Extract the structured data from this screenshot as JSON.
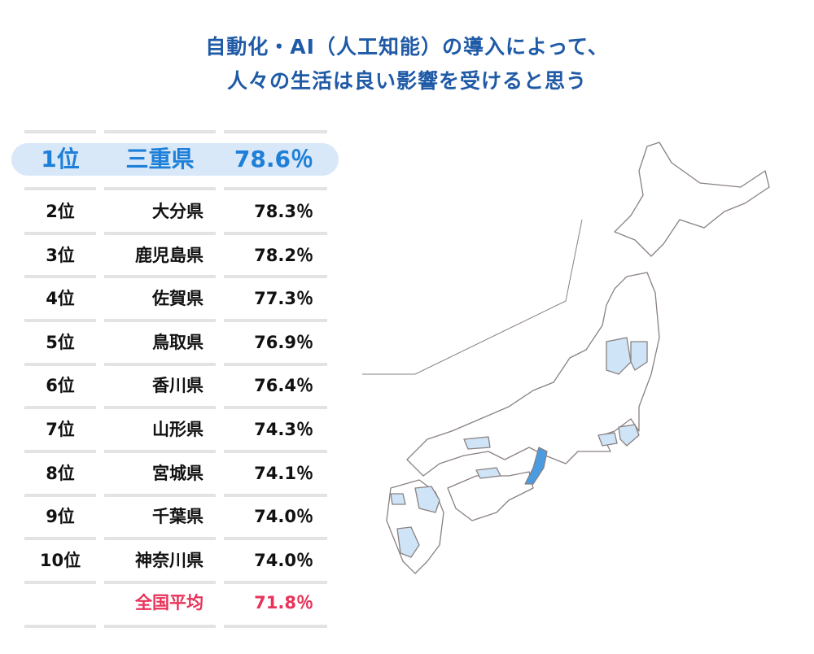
{
  "title": {
    "line1": "自動化・AI（人工知能）の導入によって、",
    "line2": "人々の生活は良い影響を受けると思う"
  },
  "ranking": [
    {
      "rank": "1位",
      "prefecture": "三重県",
      "percent": "78.6％"
    },
    {
      "rank": "2位",
      "prefecture": "大分県",
      "percent": "78.3％"
    },
    {
      "rank": "3位",
      "prefecture": "鹿児島県",
      "percent": "78.2％"
    },
    {
      "rank": "4位",
      "prefecture": "佐賀県",
      "percent": "77.3％"
    },
    {
      "rank": "5位",
      "prefecture": "鳥取県",
      "percent": "76.9％"
    },
    {
      "rank": "6位",
      "prefecture": "香川県",
      "percent": "76.4％"
    },
    {
      "rank": "7位",
      "prefecture": "山形県",
      "percent": "74.3％"
    },
    {
      "rank": "8位",
      "prefecture": "宮城県",
      "percent": "74.1％"
    },
    {
      "rank": "9位",
      "prefecture": "千葉県",
      "percent": "74.0％"
    },
    {
      "rank": "10位",
      "prefecture": "神奈川県",
      "percent": "74.0％"
    }
  ],
  "average": {
    "label": "全国平均",
    "percent": "71.8％"
  },
  "colors": {
    "title": "#1f5aa6",
    "top": "#1e7fd8",
    "top_bg": "#d8e8f8",
    "average": "#e8335a",
    "map_top": "#4a9be0",
    "map_top10": "#cfe4f7",
    "map_stroke": "#8a8080"
  }
}
